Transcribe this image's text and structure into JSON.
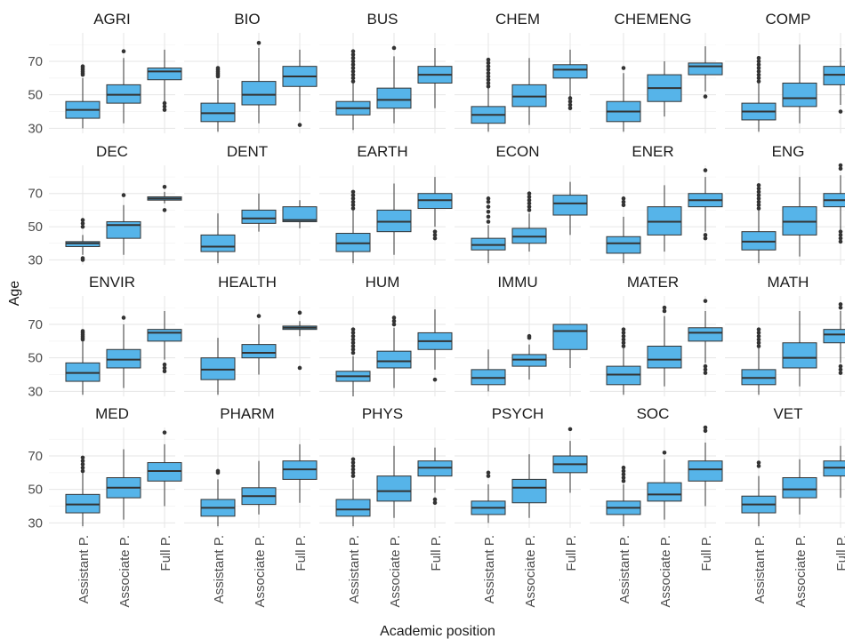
{
  "chart_data": {
    "type": "boxplot",
    "xlabel": "Academic position",
    "ylabel": "Age",
    "ylim": [
      27,
      87
    ],
    "yticks": [
      30,
      50,
      70
    ],
    "categories": [
      "Assistant P.",
      "Associate P.",
      "Full P."
    ],
    "box_color": "#56B4E9",
    "grid": true,
    "facets": [
      {
        "name": "AGRI",
        "boxes": [
          {
            "whislo": 30,
            "q1": 36,
            "med": 41,
            "q3": 46,
            "whishi": 60,
            "outliers": [
              62,
              63,
              64,
              65,
              66,
              67
            ]
          },
          {
            "whislo": 33,
            "q1": 45,
            "med": 50,
            "q3": 56,
            "whishi": 72,
            "outliers": [
              76
            ]
          },
          {
            "whislo": 46,
            "q1": 59,
            "med": 64,
            "q3": 66,
            "whishi": 77,
            "outliers": [
              41,
              43,
              45
            ]
          }
        ]
      },
      {
        "name": "BIO",
        "boxes": [
          {
            "whislo": 28,
            "q1": 34,
            "med": 39,
            "q3": 45,
            "whishi": 59,
            "outliers": [
              61,
              62,
              63,
              64,
              65,
              66
            ]
          },
          {
            "whislo": 33,
            "q1": 44,
            "med": 50,
            "q3": 58,
            "whishi": 78,
            "outliers": [
              81
            ]
          },
          {
            "whislo": 40,
            "q1": 55,
            "med": 61,
            "q3": 67,
            "whishi": 77,
            "outliers": [
              32
            ]
          }
        ]
      },
      {
        "name": "BUS",
        "boxes": [
          {
            "whislo": 29,
            "q1": 38,
            "med": 42,
            "q3": 46,
            "whishi": 57,
            "outliers": [
              58,
              60,
              62,
              64,
              66,
              68,
              70,
              72,
              74,
              76
            ]
          },
          {
            "whislo": 33,
            "q1": 42,
            "med": 47,
            "q3": 54,
            "whishi": 73,
            "outliers": [
              78
            ]
          },
          {
            "whislo": 42,
            "q1": 57,
            "med": 62,
            "q3": 67,
            "whishi": 78,
            "outliers": []
          }
        ]
      },
      {
        "name": "CHEM",
        "boxes": [
          {
            "whislo": 28,
            "q1": 33,
            "med": 38,
            "q3": 43,
            "whishi": 54,
            "outliers": [
              55,
              57,
              59,
              61,
              63,
              65,
              67,
              69,
              71
            ]
          },
          {
            "whislo": 32,
            "q1": 43,
            "med": 49,
            "q3": 56,
            "whishi": 72,
            "outliers": []
          },
          {
            "whislo": 49,
            "q1": 60,
            "med": 65,
            "q3": 68,
            "whishi": 77,
            "outliers": [
              42,
              44,
              46,
              48
            ]
          }
        ]
      },
      {
        "name": "CHEMENG",
        "boxes": [
          {
            "whislo": 28,
            "q1": 34,
            "med": 40,
            "q3": 46,
            "whishi": 63,
            "outliers": [
              66
            ]
          },
          {
            "whislo": 37,
            "q1": 46,
            "med": 54,
            "q3": 62,
            "whishi": 70,
            "outliers": []
          },
          {
            "whislo": 52,
            "q1": 62,
            "med": 67,
            "q3": 69,
            "whishi": 79,
            "outliers": [
              49
            ]
          }
        ]
      },
      {
        "name": "COMP",
        "boxes": [
          {
            "whislo": 28,
            "q1": 35,
            "med": 40,
            "q3": 45,
            "whishi": 57,
            "outliers": [
              58,
              60,
              62,
              64,
              66,
              68,
              70,
              72
            ]
          },
          {
            "whislo": 33,
            "q1": 43,
            "med": 48,
            "q3": 57,
            "whishi": 80,
            "outliers": []
          },
          {
            "whislo": 44,
            "q1": 56,
            "med": 62,
            "q3": 67,
            "whishi": 78,
            "outliers": [
              40
            ]
          }
        ]
      },
      {
        "name": "DEC",
        "boxes": [
          {
            "whislo": 33,
            "q1": 38,
            "med": 40,
            "q3": 41,
            "whishi": 45,
            "outliers": [
              30,
              31,
              50,
              52,
              54
            ]
          },
          {
            "whislo": 33,
            "q1": 43,
            "med": 51,
            "q3": 53,
            "whishi": 63,
            "outliers": [
              69
            ]
          },
          {
            "whislo": 64,
            "q1": 66,
            "med": 67,
            "q3": 68,
            "whishi": 71,
            "outliers": [
              60,
              74
            ]
          }
        ]
      },
      {
        "name": "DENT",
        "boxes": [
          {
            "whislo": 28,
            "q1": 35,
            "med": 38,
            "q3": 45,
            "whishi": 58,
            "outliers": []
          },
          {
            "whislo": 47,
            "q1": 52,
            "med": 55,
            "q3": 60,
            "whishi": 70,
            "outliers": []
          },
          {
            "whislo": 49,
            "q1": 53,
            "med": 54,
            "q3": 62,
            "whishi": 66,
            "outliers": []
          }
        ]
      },
      {
        "name": "EARTH",
        "boxes": [
          {
            "whislo": 28,
            "q1": 35,
            "med": 40,
            "q3": 46,
            "whishi": 60,
            "outliers": [
              61,
              63,
              65,
              67,
              69,
              71
            ]
          },
          {
            "whislo": 33,
            "q1": 47,
            "med": 53,
            "q3": 60,
            "whishi": 76,
            "outliers": []
          },
          {
            "whislo": 50,
            "q1": 61,
            "med": 66,
            "q3": 70,
            "whishi": 80,
            "outliers": [
              43,
              45,
              47
            ]
          }
        ]
      },
      {
        "name": "ECON",
        "boxes": [
          {
            "whislo": 28,
            "q1": 36,
            "med": 39,
            "q3": 43,
            "whishi": 51,
            "outliers": [
              53,
              56,
              59,
              62,
              65,
              67
            ]
          },
          {
            "whislo": 35,
            "q1": 40,
            "med": 44,
            "q3": 49,
            "whishi": 58,
            "outliers": [
              60,
              62,
              64,
              66,
              68,
              70
            ]
          },
          {
            "whislo": 45,
            "q1": 57,
            "med": 64,
            "q3": 69,
            "whishi": 77,
            "outliers": []
          }
        ]
      },
      {
        "name": "ENER",
        "boxes": [
          {
            "whislo": 28,
            "q1": 34,
            "med": 40,
            "q3": 44,
            "whishi": 56,
            "outliers": [
              63,
              65,
              67
            ]
          },
          {
            "whislo": 35,
            "q1": 45,
            "med": 53,
            "q3": 62,
            "whishi": 75,
            "outliers": []
          },
          {
            "whislo": 47,
            "q1": 62,
            "med": 66,
            "q3": 70,
            "whishi": 80,
            "outliers": [
              43,
              45,
              84
            ]
          }
        ]
      },
      {
        "name": "ENG",
        "boxes": [
          {
            "whislo": 28,
            "q1": 36,
            "med": 41,
            "q3": 47,
            "whishi": 60,
            "outliers": [
              61,
              63,
              65,
              67,
              69,
              71,
              73,
              75
            ]
          },
          {
            "whislo": 32,
            "q1": 45,
            "med": 53,
            "q3": 62,
            "whishi": 80,
            "outliers": []
          },
          {
            "whislo": 48,
            "q1": 62,
            "med": 66,
            "q3": 70,
            "whishi": 81,
            "outliers": [
              41,
              43,
              45,
              47,
              85,
              87
            ]
          }
        ]
      },
      {
        "name": "ENVIR",
        "boxes": [
          {
            "whislo": 28,
            "q1": 36,
            "med": 41,
            "q3": 47,
            "whishi": 60,
            "outliers": [
              61,
              62,
              63,
              64,
              65,
              66
            ]
          },
          {
            "whislo": 32,
            "q1": 44,
            "med": 49,
            "q3": 55,
            "whishi": 70,
            "outliers": [
              74
            ]
          },
          {
            "whislo": 49,
            "q1": 60,
            "med": 65,
            "q3": 67,
            "whishi": 78,
            "outliers": [
              42,
              44,
              46
            ]
          }
        ]
      },
      {
        "name": "HEALTH",
        "boxes": [
          {
            "whislo": 28,
            "q1": 37,
            "med": 43,
            "q3": 50,
            "whishi": 62,
            "outliers": []
          },
          {
            "whislo": 40,
            "q1": 50,
            "med": 53,
            "q3": 58,
            "whishi": 70,
            "outliers": [
              75
            ]
          },
          {
            "whislo": 63,
            "q1": 67,
            "med": 68,
            "q3": 69,
            "whishi": 72,
            "outliers": [
              44,
              77
            ]
          }
        ]
      },
      {
        "name": "HUM",
        "boxes": [
          {
            "whislo": 27,
            "q1": 36,
            "med": 39,
            "q3": 42,
            "whishi": 51,
            "outliers": [
              53,
              55,
              57,
              59,
              61,
              63,
              65,
              67
            ]
          },
          {
            "whislo": 32,
            "q1": 44,
            "med": 48,
            "q3": 54,
            "whishi": 68,
            "outliers": [
              70,
              72,
              74
            ]
          },
          {
            "whislo": 43,
            "q1": 55,
            "med": 60,
            "q3": 65,
            "whishi": 79,
            "outliers": [
              37
            ]
          }
        ]
      },
      {
        "name": "IMMU",
        "boxes": [
          {
            "whislo": 30,
            "q1": 34,
            "med": 38,
            "q3": 43,
            "whishi": 55,
            "outliers": []
          },
          {
            "whislo": 37,
            "q1": 45,
            "med": 49,
            "q3": 52,
            "whishi": 58,
            "outliers": [
              62,
              63
            ]
          },
          {
            "whislo": 44,
            "q1": 55,
            "med": 66,
            "q3": 70,
            "whishi": 70,
            "outliers": []
          }
        ]
      },
      {
        "name": "MATER",
        "boxes": [
          {
            "whislo": 28,
            "q1": 34,
            "med": 40,
            "q3": 45,
            "whishi": 56,
            "outliers": [
              57,
              59,
              61,
              63,
              65,
              67
            ]
          },
          {
            "whislo": 33,
            "q1": 44,
            "med": 49,
            "q3": 57,
            "whishi": 75,
            "outliers": [
              78,
              80
            ]
          },
          {
            "whislo": 47,
            "q1": 60,
            "med": 65,
            "q3": 68,
            "whishi": 78,
            "outliers": [
              41,
              43,
              45,
              84
            ]
          }
        ]
      },
      {
        "name": "MATH",
        "boxes": [
          {
            "whislo": 28,
            "q1": 34,
            "med": 38,
            "q3": 43,
            "whishi": 56,
            "outliers": [
              57,
              59,
              61,
              63,
              65,
              67
            ]
          },
          {
            "whislo": 33,
            "q1": 44,
            "med": 50,
            "q3": 59,
            "whishi": 78,
            "outliers": []
          },
          {
            "whislo": 47,
            "q1": 59,
            "med": 64,
            "q3": 67,
            "whishi": 78,
            "outliers": [
              41,
              43,
              45,
              80,
              82
            ]
          }
        ]
      },
      {
        "name": "MED",
        "boxes": [
          {
            "whislo": 28,
            "q1": 36,
            "med": 41,
            "q3": 47,
            "whishi": 60,
            "outliers": [
              61,
              63,
              65,
              67,
              69
            ]
          },
          {
            "whislo": 32,
            "q1": 45,
            "med": 51,
            "q3": 57,
            "whishi": 74,
            "outliers": []
          },
          {
            "whislo": 40,
            "q1": 55,
            "med": 61,
            "q3": 66,
            "whishi": 77,
            "outliers": [
              84
            ]
          }
        ]
      },
      {
        "name": "PHARM",
        "boxes": [
          {
            "whislo": 28,
            "q1": 34,
            "med": 39,
            "q3": 44,
            "whishi": 56,
            "outliers": [
              60,
              61
            ]
          },
          {
            "whislo": 35,
            "q1": 41,
            "med": 46,
            "q3": 51,
            "whishi": 67,
            "outliers": []
          },
          {
            "whislo": 42,
            "q1": 56,
            "med": 62,
            "q3": 67,
            "whishi": 77,
            "outliers": []
          }
        ]
      },
      {
        "name": "PHYS",
        "boxes": [
          {
            "whislo": 28,
            "q1": 34,
            "med": 38,
            "q3": 44,
            "whishi": 56,
            "outliers": [
              58,
              60,
              62,
              64,
              66,
              68
            ]
          },
          {
            "whislo": 33,
            "q1": 43,
            "med": 49,
            "q3": 58,
            "whishi": 76,
            "outliers": []
          },
          {
            "whislo": 48,
            "q1": 58,
            "med": 63,
            "q3": 67,
            "whishi": 75,
            "outliers": [
              42,
              44
            ]
          }
        ]
      },
      {
        "name": "PSYCH",
        "boxes": [
          {
            "whislo": 30,
            "q1": 35,
            "med": 39,
            "q3": 43,
            "whishi": 53,
            "outliers": [
              58,
              60
            ]
          },
          {
            "whislo": 33,
            "q1": 42,
            "med": 51,
            "q3": 56,
            "whishi": 71,
            "outliers": []
          },
          {
            "whislo": 48,
            "q1": 60,
            "med": 65,
            "q3": 70,
            "whishi": 79,
            "outliers": [
              86
            ]
          }
        ]
      },
      {
        "name": "SOC",
        "boxes": [
          {
            "whislo": 28,
            "q1": 35,
            "med": 39,
            "q3": 43,
            "whishi": 53,
            "outliers": [
              55,
              57,
              59,
              61,
              63
            ]
          },
          {
            "whislo": 32,
            "q1": 43,
            "med": 47,
            "q3": 54,
            "whishi": 68,
            "outliers": [
              72
            ]
          },
          {
            "whislo": 40,
            "q1": 55,
            "med": 62,
            "q3": 67,
            "whishi": 78,
            "outliers": [
              85,
              87
            ]
          }
        ]
      },
      {
        "name": "VET",
        "boxes": [
          {
            "whislo": 28,
            "q1": 36,
            "med": 41,
            "q3": 46,
            "whishi": 58,
            "outliers": [
              64,
              66
            ]
          },
          {
            "whislo": 35,
            "q1": 45,
            "med": 50,
            "q3": 57,
            "whishi": 68,
            "outliers": []
          },
          {
            "whislo": 45,
            "q1": 58,
            "med": 63,
            "q3": 67,
            "whishi": 76,
            "outliers": []
          }
        ]
      }
    ]
  }
}
